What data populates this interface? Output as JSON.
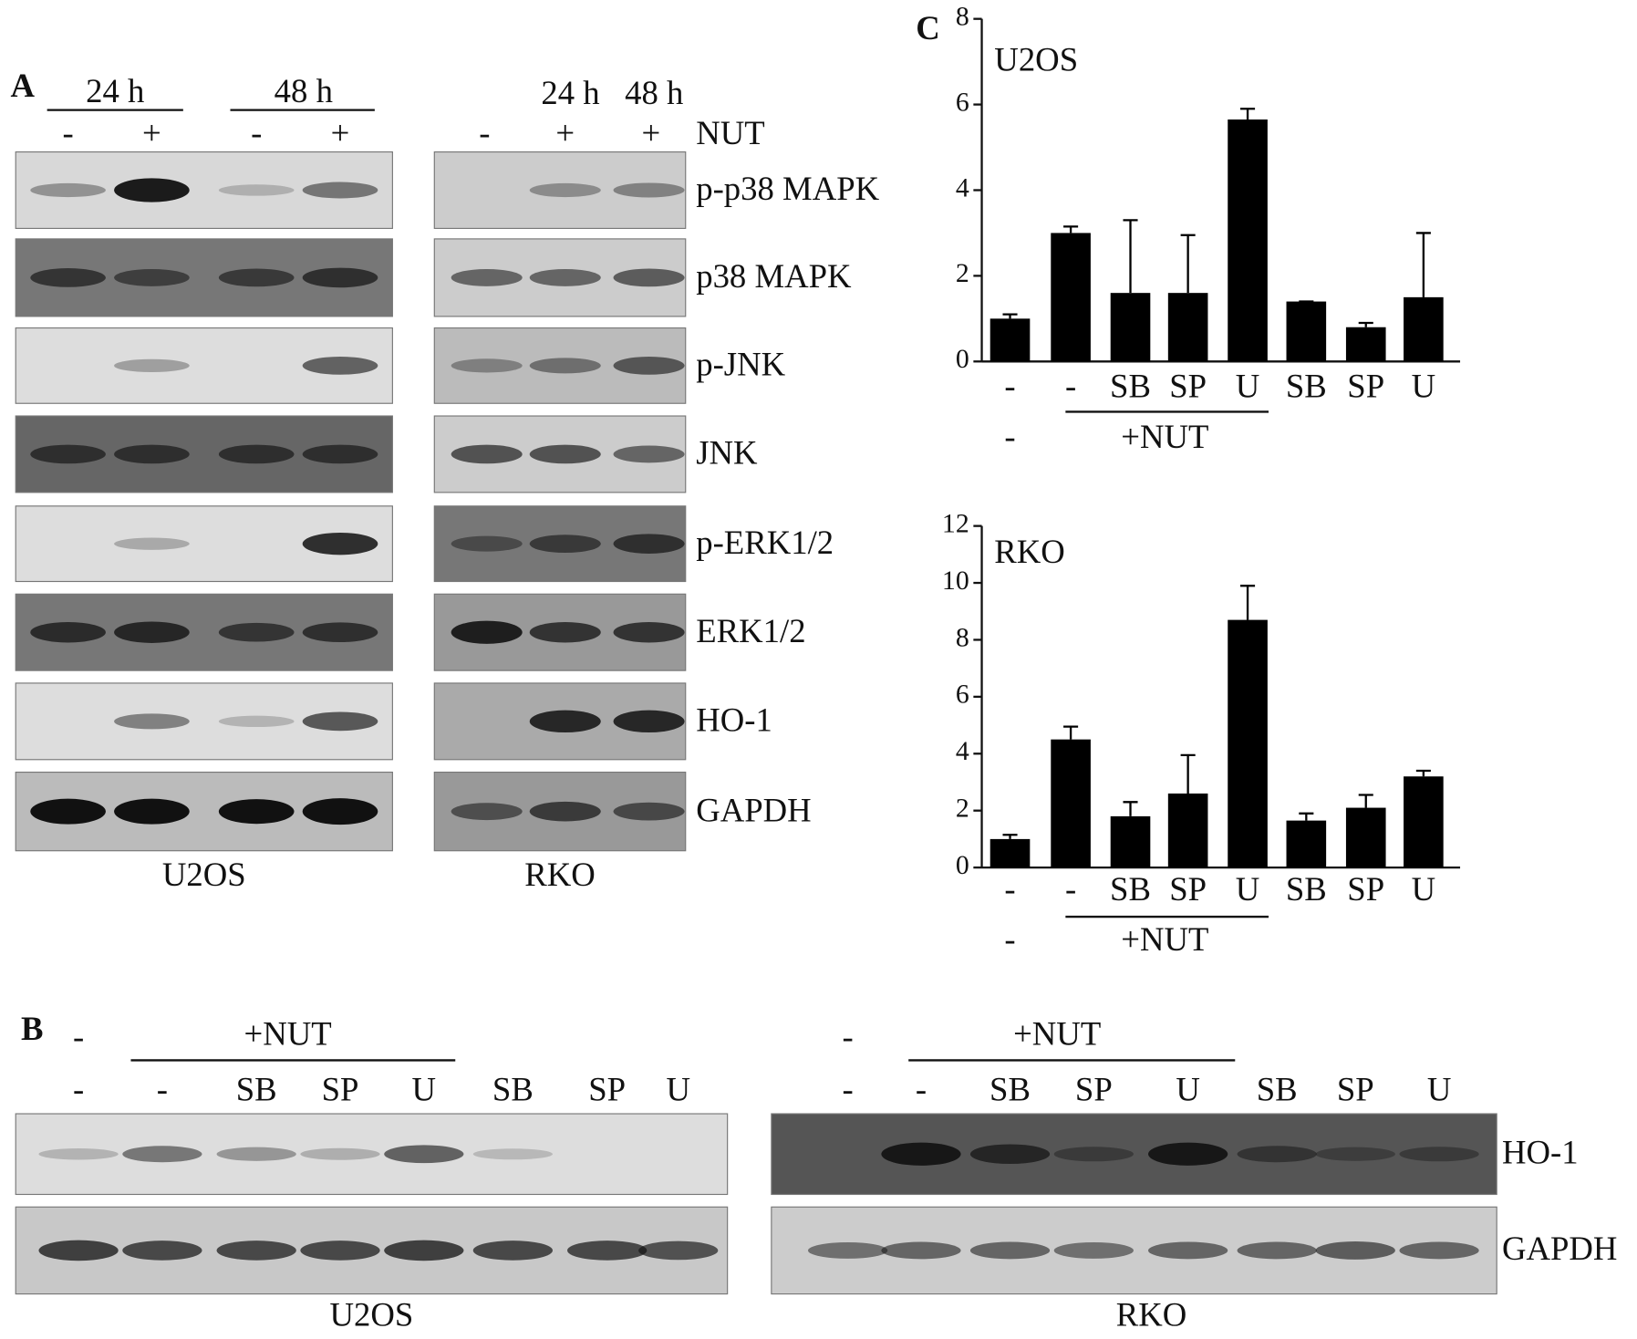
{
  "panel_a": {
    "label": "A",
    "u2os": {
      "times": [
        "24 h",
        "48 h"
      ],
      "treatments": [
        "-",
        "+",
        "-",
        "+"
      ],
      "cell": "U2OS"
    },
    "rko": {
      "times": [
        "24 h",
        "48 h"
      ],
      "treatments": [
        "-",
        "+",
        "+"
      ],
      "treatment_name": "NUT",
      "cell": "RKO"
    },
    "proteins": [
      "p-p38 MAPK",
      "p38 MAPK",
      "p-JNK",
      "JNK",
      "p-ERK1/2",
      "ERK1/2",
      "HO-1",
      "GAPDH"
    ]
  },
  "panel_b": {
    "label": "B",
    "u2os": {
      "row1": [
        "-",
        "+NUT"
      ],
      "row2": [
        "-",
        "-",
        "SB",
        "SP",
        "U",
        "SB",
        "SP",
        "U"
      ],
      "cell": "U2OS"
    },
    "rko": {
      "row1": [
        "-",
        "+NUT"
      ],
      "row2": [
        "-",
        "-",
        "SB",
        "SP",
        "U",
        "SB",
        "SP",
        "U"
      ],
      "cell": "RKO"
    },
    "proteins": [
      "HO-1",
      "GAPDH"
    ]
  },
  "panel_c": {
    "label": "C"
  },
  "chart_data": [
    {
      "type": "bar",
      "title": "U2OS",
      "categories": [
        "-",
        "-",
        "SB",
        "SP",
        "U",
        "SB",
        "SP",
        "U"
      ],
      "sublabels": [
        "-",
        "+NUT"
      ],
      "values": [
        1,
        3,
        1.6,
        1.6,
        5.65,
        1.4,
        0.8,
        1.5
      ],
      "errors": [
        0.1,
        0.15,
        1.7,
        1.35,
        0.25,
        0,
        0.1,
        1.5
      ],
      "color": "#000000",
      "ylim": [
        0,
        8
      ],
      "yticks": [
        0,
        2,
        4,
        6,
        8
      ]
    },
    {
      "type": "bar",
      "title": "RKO",
      "categories": [
        "-",
        "-",
        "SB",
        "SP",
        "U",
        "SB",
        "SP",
        "U"
      ],
      "sublabels": [
        "-",
        "+NUT"
      ],
      "values": [
        1,
        4.5,
        1.8,
        2.6,
        8.7,
        1.65,
        2.1,
        3.2
      ],
      "errors": [
        0.15,
        0.45,
        0.5,
        1.35,
        1.2,
        0.25,
        0.45,
        0.2
      ],
      "color": "#000000",
      "ylim": [
        0,
        12
      ],
      "yticks": [
        0,
        2,
        4,
        6,
        8,
        10,
        12
      ]
    }
  ]
}
